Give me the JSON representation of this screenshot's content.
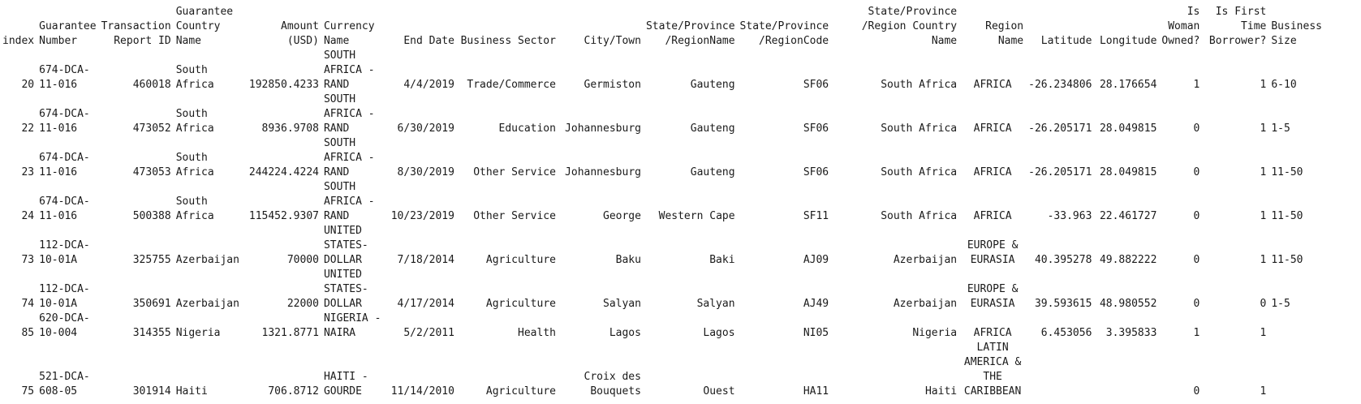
{
  "columns": [
    {
      "key": "index",
      "label": "index"
    },
    {
      "key": "guarantee_number",
      "label": "Guarantee Number"
    },
    {
      "key": "transaction_report_id",
      "label": "Transaction Report ID"
    },
    {
      "key": "guarantee_country_name",
      "label": "Guarantee Country Name"
    },
    {
      "key": "amount_usd",
      "label": "Amount (USD)"
    },
    {
      "key": "currency_name",
      "label": "Currency Name"
    },
    {
      "key": "end_date",
      "label": "End Date"
    },
    {
      "key": "business_sector",
      "label": "Business Sector"
    },
    {
      "key": "city_town",
      "label": "City/Town"
    },
    {
      "key": "state_region_name",
      "label": "State/Province /RegionName"
    },
    {
      "key": "state_region_code",
      "label": "State/Province /RegionCode"
    },
    {
      "key": "state_region_country",
      "label": "State/Province /Region Country Name"
    },
    {
      "key": "region_name",
      "label": "Region Name"
    },
    {
      "key": "latitude",
      "label": "Latitude"
    },
    {
      "key": "longitude",
      "label": "Longitude"
    },
    {
      "key": "is_woman_owned",
      "label": "Is Woman Owned?"
    },
    {
      "key": "is_first_time_borrower",
      "label": "Is First Time Borrower?"
    },
    {
      "key": "business_size",
      "label": "Business Size"
    }
  ],
  "rows": [
    [
      "20",
      "674-DCA-11-016",
      "460018",
      "South Africa",
      "192850.4233",
      "SOUTH AFRICA - RAND",
      "4/4/2019",
      "Trade/Commerce",
      "Germiston",
      "Gauteng",
      "SF06",
      "South Africa",
      "AFRICA",
      "-26.234806",
      "28.176654",
      "1",
      "1",
      "6-10"
    ],
    [
      "22",
      "674-DCA-11-016",
      "473052",
      "South Africa",
      "8936.9708",
      "SOUTH AFRICA - RAND",
      "6/30/2019",
      "Education",
      "Johannesburg",
      "Gauteng",
      "SF06",
      "South Africa",
      "AFRICA",
      "-26.205171",
      "28.049815",
      "0",
      "1",
      "1-5"
    ],
    [
      "23",
      "674-DCA-11-016",
      "473053",
      "South Africa",
      "244224.4224",
      "SOUTH AFRICA - RAND",
      "8/30/2019",
      "Other Service",
      "Johannesburg",
      "Gauteng",
      "SF06",
      "South Africa",
      "AFRICA",
      "-26.205171",
      "28.049815",
      "0",
      "1",
      "11-50"
    ],
    [
      "24",
      "674-DCA-11-016",
      "500388",
      "South Africa",
      "115452.9307",
      "SOUTH AFRICA - RAND",
      "10/23/2019",
      "Other Service",
      "George",
      "Western Cape",
      "SF11",
      "South Africa",
      "AFRICA",
      "-33.963",
      "22.461727",
      "0",
      "1",
      "11-50"
    ],
    [
      "73",
      "112-DCA-10-01A",
      "325755",
      "Azerbaijan",
      "70000",
      "UNITED STATES-DOLLAR",
      "7/18/2014",
      "Agriculture",
      "Baku",
      "Baki",
      "AJ09",
      "Azerbaijan",
      "EUROPE & EURASIA",
      "40.395278",
      "49.882222",
      "0",
      "1",
      "11-50"
    ],
    [
      "74",
      "112-DCA-10-01A",
      "350691",
      "Azerbaijan",
      "22000",
      "UNITED STATES-DOLLAR",
      "4/17/2014",
      "Agriculture",
      "Salyan",
      "Salyan",
      "AJ49",
      "Azerbaijan",
      "EUROPE & EURASIA",
      "39.593615",
      "48.980552",
      "0",
      "0",
      "1-5"
    ],
    [
      "85",
      "620-DCA-10-004",
      "314355",
      "Nigeria",
      "1321.8771",
      "NIGERIA - NAIRA",
      "5/2/2011",
      "Health",
      "Lagos",
      "Lagos",
      "NI05",
      "Nigeria",
      "AFRICA",
      "6.453056",
      "3.395833",
      "1",
      "1",
      ""
    ],
    [
      "75",
      "521-DCA-608-05",
      "301914",
      "Haiti",
      "706.8712",
      "HAITI - GOURDE",
      "11/14/2010",
      "Agriculture",
      "Croix des Bouquets",
      "Ouest",
      "HA11",
      "Haiti",
      "LATIN AMERICA & THE CARIBBEAN",
      "",
      "",
      "0",
      "1",
      ""
    ]
  ]
}
